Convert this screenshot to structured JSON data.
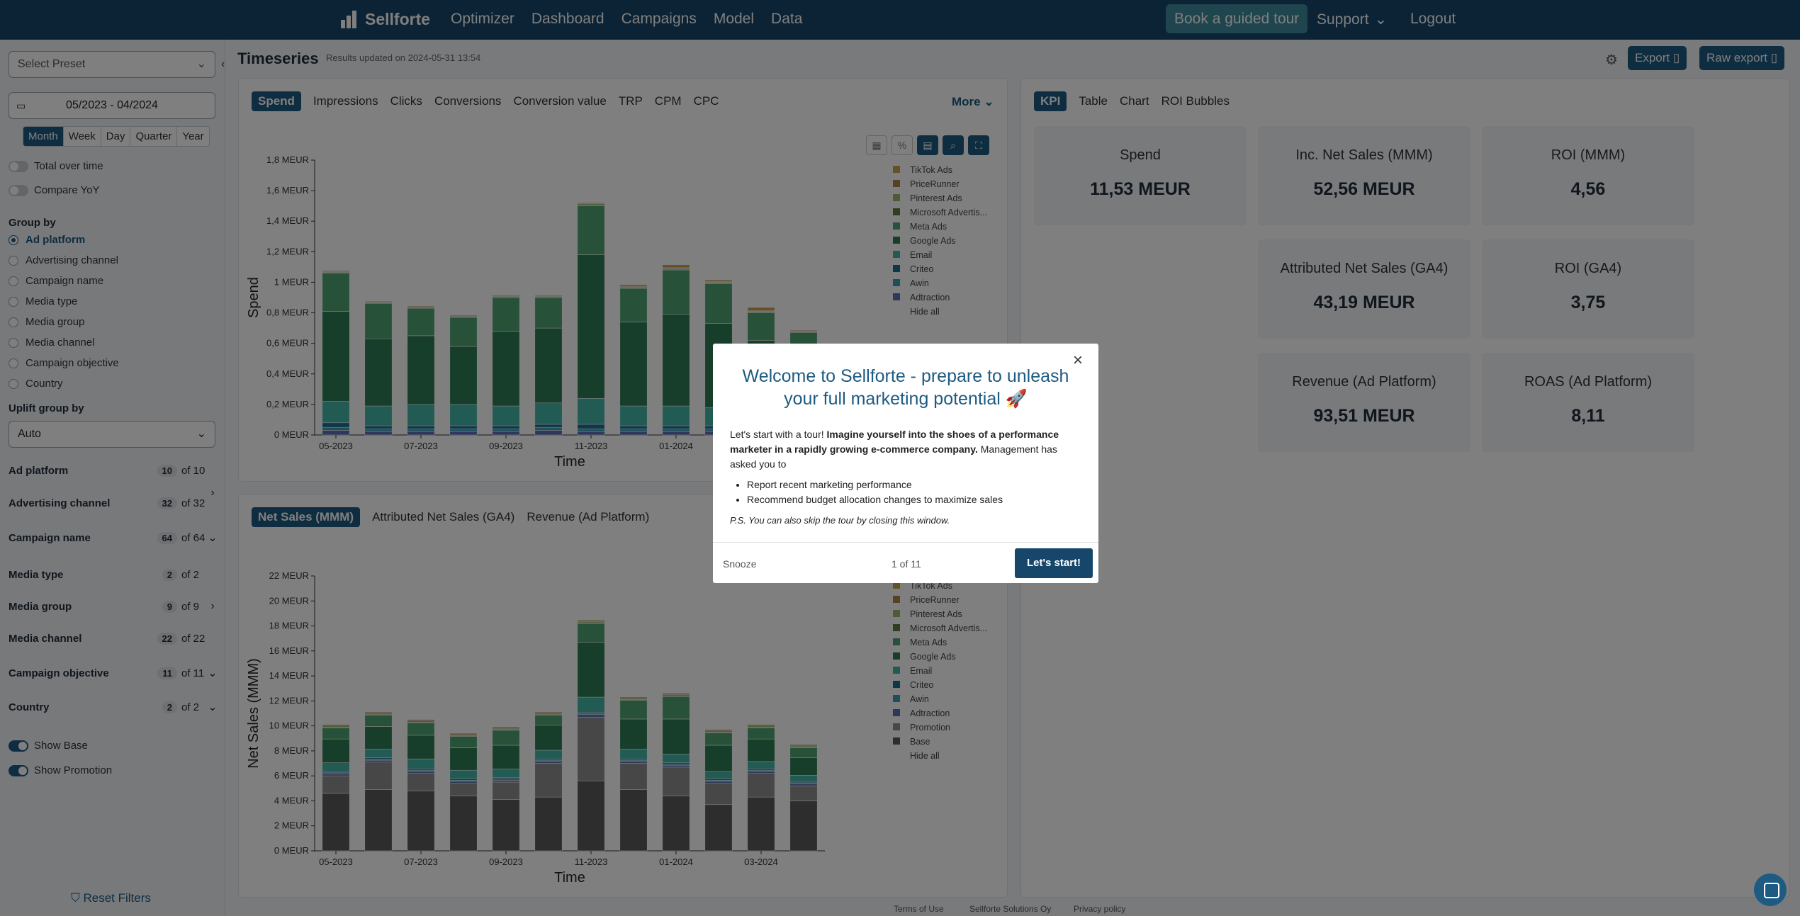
{
  "nav": {
    "brand": "Sellforte",
    "links": [
      "Optimizer",
      "Dashboard",
      "Campaigns",
      "Model",
      "Data"
    ],
    "tour": "Book a guided tour",
    "support": "Support",
    "logout": "Logout"
  },
  "sidebar": {
    "preset_placeholder": "Select Preset",
    "date_range": "05/2023 - 04/2024",
    "periods": [
      "Month",
      "Week",
      "Day",
      "Quarter",
      "Year"
    ],
    "active_period": "Month",
    "toggles": [
      {
        "label": "Total over time",
        "on": false
      },
      {
        "label": "Compare YoY",
        "on": false
      }
    ],
    "group_by_title": "Group by",
    "group_by": [
      "Ad platform",
      "Advertising channel",
      "Campaign name",
      "Media type",
      "Media group",
      "Media channel",
      "Campaign objective",
      "Country"
    ],
    "group_selected": "Ad platform",
    "uplift_title": "Uplift group by",
    "uplift_value": "Auto",
    "filters": [
      {
        "label": "Ad platform",
        "count": "10",
        "of": "of 10",
        "arrow": ""
      },
      {
        "label": "Advertising channel",
        "count": "32",
        "of": "of 32",
        "arrow": "›"
      },
      {
        "label": "Campaign name",
        "count": "64",
        "of": "of 64",
        "arrow": "⌄"
      },
      {
        "label": "Media type",
        "count": "2",
        "of": "of 2",
        "arrow": ""
      },
      {
        "label": "Media group",
        "count": "9",
        "of": "of 9",
        "arrow": "›"
      },
      {
        "label": "Media channel",
        "count": "22",
        "of": "of 22",
        "arrow": ""
      },
      {
        "label": "Campaign objective",
        "count": "11",
        "of": "of 11",
        "arrow": "⌄"
      },
      {
        "label": "Country",
        "count": "2",
        "of": "of 2",
        "arrow": "⌄"
      }
    ],
    "bottom_toggles": [
      {
        "label": "Show Base",
        "on": true
      },
      {
        "label": "Show Promotion",
        "on": true
      }
    ],
    "reset": "Reset Filters"
  },
  "header": {
    "title": "Timeseries",
    "updated": "Results updated on 2024-05-31 13:54",
    "export": "Export",
    "raw_export": "Raw export"
  },
  "top_chart": {
    "tabs": [
      "Spend",
      "Impressions",
      "Clicks",
      "Conversions",
      "Conversion value",
      "TRP",
      "CPM",
      "CPC"
    ],
    "active": "Spend",
    "more": "More"
  },
  "bottom_chart": {
    "tabs": [
      "Net Sales (MMM)",
      "Attributed Net Sales (GA4)",
      "Revenue (Ad Platform)"
    ],
    "active": "Net Sales (MMM)"
  },
  "kpi_panel": {
    "tabs": [
      "KPI",
      "Table",
      "Chart",
      "ROI Bubbles"
    ],
    "active": "KPI",
    "cards": [
      {
        "label": "Spend",
        "value": "11,53 MEUR"
      },
      {
        "label": "Inc. Net Sales (MMM)",
        "value": "52,56 MEUR"
      },
      {
        "label": "ROI (MMM)",
        "value": "4,56"
      },
      {
        "label": "Attributed Net Sales (GA4)",
        "value": "43,19 MEUR"
      },
      {
        "label": "ROI (GA4)",
        "value": "3,75"
      },
      {
        "label": "Revenue (Ad Platform)",
        "value": "93,51 MEUR"
      },
      {
        "label": "ROAS (Ad Platform)",
        "value": "8,11"
      }
    ]
  },
  "modal": {
    "title": "Welcome to Sellforte - prepare to unleash your full marketing potential 🚀",
    "intro": "Let's start with a tour! ",
    "intro_bold": "Imagine yourself into the shoes of a performance marketer in a rapidly growing e-commerce company.",
    "intro_tail": " Management has asked you to",
    "bullets": [
      "Report recent marketing performance",
      "Recommend budget allocation changes to maximize sales"
    ],
    "ps": "P.S. You can also skip the tour by closing this window.",
    "snooze": "Snooze",
    "progress": "1 of 11",
    "start": "Let's start!"
  },
  "footer": {
    "terms": "Terms of Use",
    "company": "Sellforte Solutions Oy",
    "privacy": "Privacy policy"
  },
  "colors": {
    "base": "#5b5b5b",
    "promotion": "#8e8e8e",
    "adtraction": "#5a72b5",
    "awin": "#3aa0b8",
    "criteo": "#1f6f95",
    "email": "#44b5a8",
    "google": "#2e7d55",
    "meta": "#4fa472",
    "microsoft": "#5f7f3a",
    "pinterest": "#9bb96a",
    "pricerunner": "#b0824a",
    "tiktok": "#c9a24f"
  },
  "chart_data": [
    {
      "type": "bar",
      "stacked": true,
      "title": "",
      "xlabel": "Time",
      "ylabel": "Spend",
      "ylim": [
        0,
        1.8
      ],
      "yticks": [
        "0 MEUR",
        "0,2 MEUR",
        "0,4 MEUR",
        "0,6 MEUR",
        "0,8 MEUR",
        "1 MEUR",
        "1,2 MEUR",
        "1,4 MEUR",
        "1,6 MEUR",
        "1,8 MEUR"
      ],
      "categories": [
        "05-2023",
        "06-2023",
        "07-2023",
        "08-2023",
        "09-2023",
        "10-2023",
        "11-2023",
        "12-2023",
        "01-2024",
        "02-2024",
        "03-2024",
        "04-2024"
      ],
      "xticks": [
        "05-2023",
        "07-2023",
        "09-2023",
        "11-2023",
        "01-2024",
        "03-2024"
      ],
      "legend": [
        "TikTok Ads",
        "PriceRunner",
        "Pinterest Ads",
        "Microsoft Advertis...",
        "Meta Ads",
        "Google Ads",
        "Email",
        "Criteo",
        "Awin",
        "Adtraction",
        "Hide all"
      ],
      "series": [
        {
          "name": "Adtraction",
          "color": "adtraction",
          "values": [
            0.03,
            0.02,
            0.02,
            0.02,
            0.02,
            0.03,
            0.02,
            0.02,
            0.02,
            0.02,
            0.02,
            0.02
          ]
        },
        {
          "name": "Awin",
          "color": "awin",
          "values": [
            0.02,
            0.02,
            0.02,
            0.02,
            0.02,
            0.02,
            0.02,
            0.02,
            0.02,
            0.02,
            0.02,
            0.02
          ]
        },
        {
          "name": "Criteo",
          "color": "criteo",
          "values": [
            0.03,
            0.02,
            0.02,
            0.02,
            0.02,
            0.02,
            0.03,
            0.02,
            0.02,
            0.02,
            0.02,
            0.02
          ]
        },
        {
          "name": "Email",
          "color": "email",
          "values": [
            0.14,
            0.13,
            0.14,
            0.14,
            0.13,
            0.14,
            0.17,
            0.13,
            0.13,
            0.12,
            0.11,
            0.1
          ]
        },
        {
          "name": "Google Ads",
          "color": "google",
          "values": [
            0.59,
            0.44,
            0.45,
            0.38,
            0.49,
            0.49,
            0.94,
            0.55,
            0.6,
            0.55,
            0.45,
            0.37
          ]
        },
        {
          "name": "Meta Ads",
          "color": "meta",
          "values": [
            0.25,
            0.23,
            0.18,
            0.19,
            0.22,
            0.2,
            0.32,
            0.22,
            0.29,
            0.26,
            0.18,
            0.14
          ]
        },
        {
          "name": "Microsoft Advertis...",
          "color": "microsoft",
          "values": [
            0.005,
            0.005,
            0.005,
            0.005,
            0.005,
            0.005,
            0.005,
            0.005,
            0.005,
            0.005,
            0.005,
            0.005
          ]
        },
        {
          "name": "Pinterest Ads",
          "color": "pinterest",
          "values": [
            0.005,
            0.005,
            0.005,
            0.005,
            0.005,
            0.005,
            0.01,
            0.005,
            0.005,
            0.005,
            0.005,
            0.005
          ]
        },
        {
          "name": "PriceRunner",
          "color": "pricerunner",
          "values": [
            0.005,
            0.005,
            0.005,
            0.005,
            0.005,
            0.005,
            0.005,
            0.005,
            0.005,
            0.005,
            0.005,
            0.005
          ]
        },
        {
          "name": "TikTok Ads",
          "color": "tiktok",
          "values": [
            0.0,
            0.0,
            0.0,
            0.0,
            0.0,
            0.0,
            0.0,
            0.01,
            0.02,
            0.01,
            0.02,
            0.0
          ]
        }
      ]
    },
    {
      "type": "bar",
      "stacked": true,
      "title": "",
      "xlabel": "Time",
      "ylabel": "Net Sales (MMM)",
      "ylim": [
        0,
        22
      ],
      "yticks": [
        "0 MEUR",
        "2 MEUR",
        "4 MEUR",
        "6 MEUR",
        "8 MEUR",
        "10 MEUR",
        "12 MEUR",
        "14 MEUR",
        "16 MEUR",
        "18 MEUR",
        "20 MEUR",
        "22 MEUR"
      ],
      "categories": [
        "05-2023",
        "06-2023",
        "07-2023",
        "08-2023",
        "09-2023",
        "10-2023",
        "11-2023",
        "12-2023",
        "01-2024",
        "02-2024",
        "03-2024",
        "04-2024"
      ],
      "xticks": [
        "05-2023",
        "07-2023",
        "09-2023",
        "11-2023",
        "01-2024",
        "03-2024"
      ],
      "legend": [
        "TikTok Ads",
        "PriceRunner",
        "Pinterest Ads",
        "Microsoft Advertis...",
        "Meta Ads",
        "Google Ads",
        "Email",
        "Criteo",
        "Awin",
        "Adtraction",
        "Promotion",
        "Base",
        "Hide all"
      ],
      "series": [
        {
          "name": "Base",
          "color": "base",
          "values": [
            4.6,
            4.9,
            4.8,
            4.4,
            4.1,
            4.3,
            5.6,
            4.9,
            4.4,
            3.7,
            4.3,
            4.0
          ]
        },
        {
          "name": "Promotion",
          "color": "promotion",
          "values": [
            1.4,
            2.2,
            1.4,
            1.0,
            1.4,
            2.7,
            5.1,
            2.1,
            2.3,
            1.7,
            1.9,
            1.2
          ]
        },
        {
          "name": "Adtraction",
          "color": "adtraction",
          "values": [
            0.15,
            0.15,
            0.15,
            0.15,
            0.15,
            0.15,
            0.2,
            0.15,
            0.15,
            0.15,
            0.15,
            0.15
          ]
        },
        {
          "name": "Awin",
          "color": "awin",
          "values": [
            0.1,
            0.1,
            0.1,
            0.1,
            0.1,
            0.1,
            0.1,
            0.1,
            0.1,
            0.1,
            0.1,
            0.1
          ]
        },
        {
          "name": "Criteo",
          "color": "criteo",
          "values": [
            0.1,
            0.1,
            0.1,
            0.1,
            0.1,
            0.1,
            0.1,
            0.1,
            0.1,
            0.1,
            0.1,
            0.1
          ]
        },
        {
          "name": "Email",
          "color": "email",
          "values": [
            0.7,
            0.7,
            0.8,
            0.7,
            0.7,
            0.7,
            1.2,
            0.8,
            0.7,
            0.6,
            0.6,
            0.5
          ]
        },
        {
          "name": "Google Ads",
          "color": "google",
          "values": [
            1.9,
            1.8,
            1.9,
            1.8,
            1.9,
            2.0,
            4.4,
            2.4,
            2.8,
            2.1,
            1.8,
            1.4
          ]
        },
        {
          "name": "Meta Ads",
          "color": "meta",
          "values": [
            0.9,
            0.9,
            1.0,
            0.9,
            1.2,
            0.8,
            1.5,
            1.5,
            1.8,
            1.0,
            0.9,
            0.8
          ]
        },
        {
          "name": "Microsoft Advertis...",
          "color": "microsoft",
          "values": [
            0.05,
            0.05,
            0.05,
            0.05,
            0.05,
            0.05,
            0.05,
            0.05,
            0.05,
            0.05,
            0.05,
            0.05
          ]
        },
        {
          "name": "Pinterest Ads",
          "color": "pinterest",
          "values": [
            0.1,
            0.1,
            0.1,
            0.1,
            0.1,
            0.1,
            0.1,
            0.1,
            0.1,
            0.1,
            0.1,
            0.1
          ]
        },
        {
          "name": "PriceRunner",
          "color": "pricerunner",
          "values": [
            0.1,
            0.1,
            0.1,
            0.1,
            0.1,
            0.1,
            0.1,
            0.1,
            0.1,
            0.1,
            0.1,
            0.1
          ]
        },
        {
          "name": "TikTok Ads",
          "color": "tiktok",
          "values": [
            0.0,
            0.0,
            0.0,
            0.0,
            0.0,
            0.0,
            0.0,
            0.0,
            0.0,
            0.0,
            0.0,
            0.0
          ]
        }
      ]
    }
  ]
}
